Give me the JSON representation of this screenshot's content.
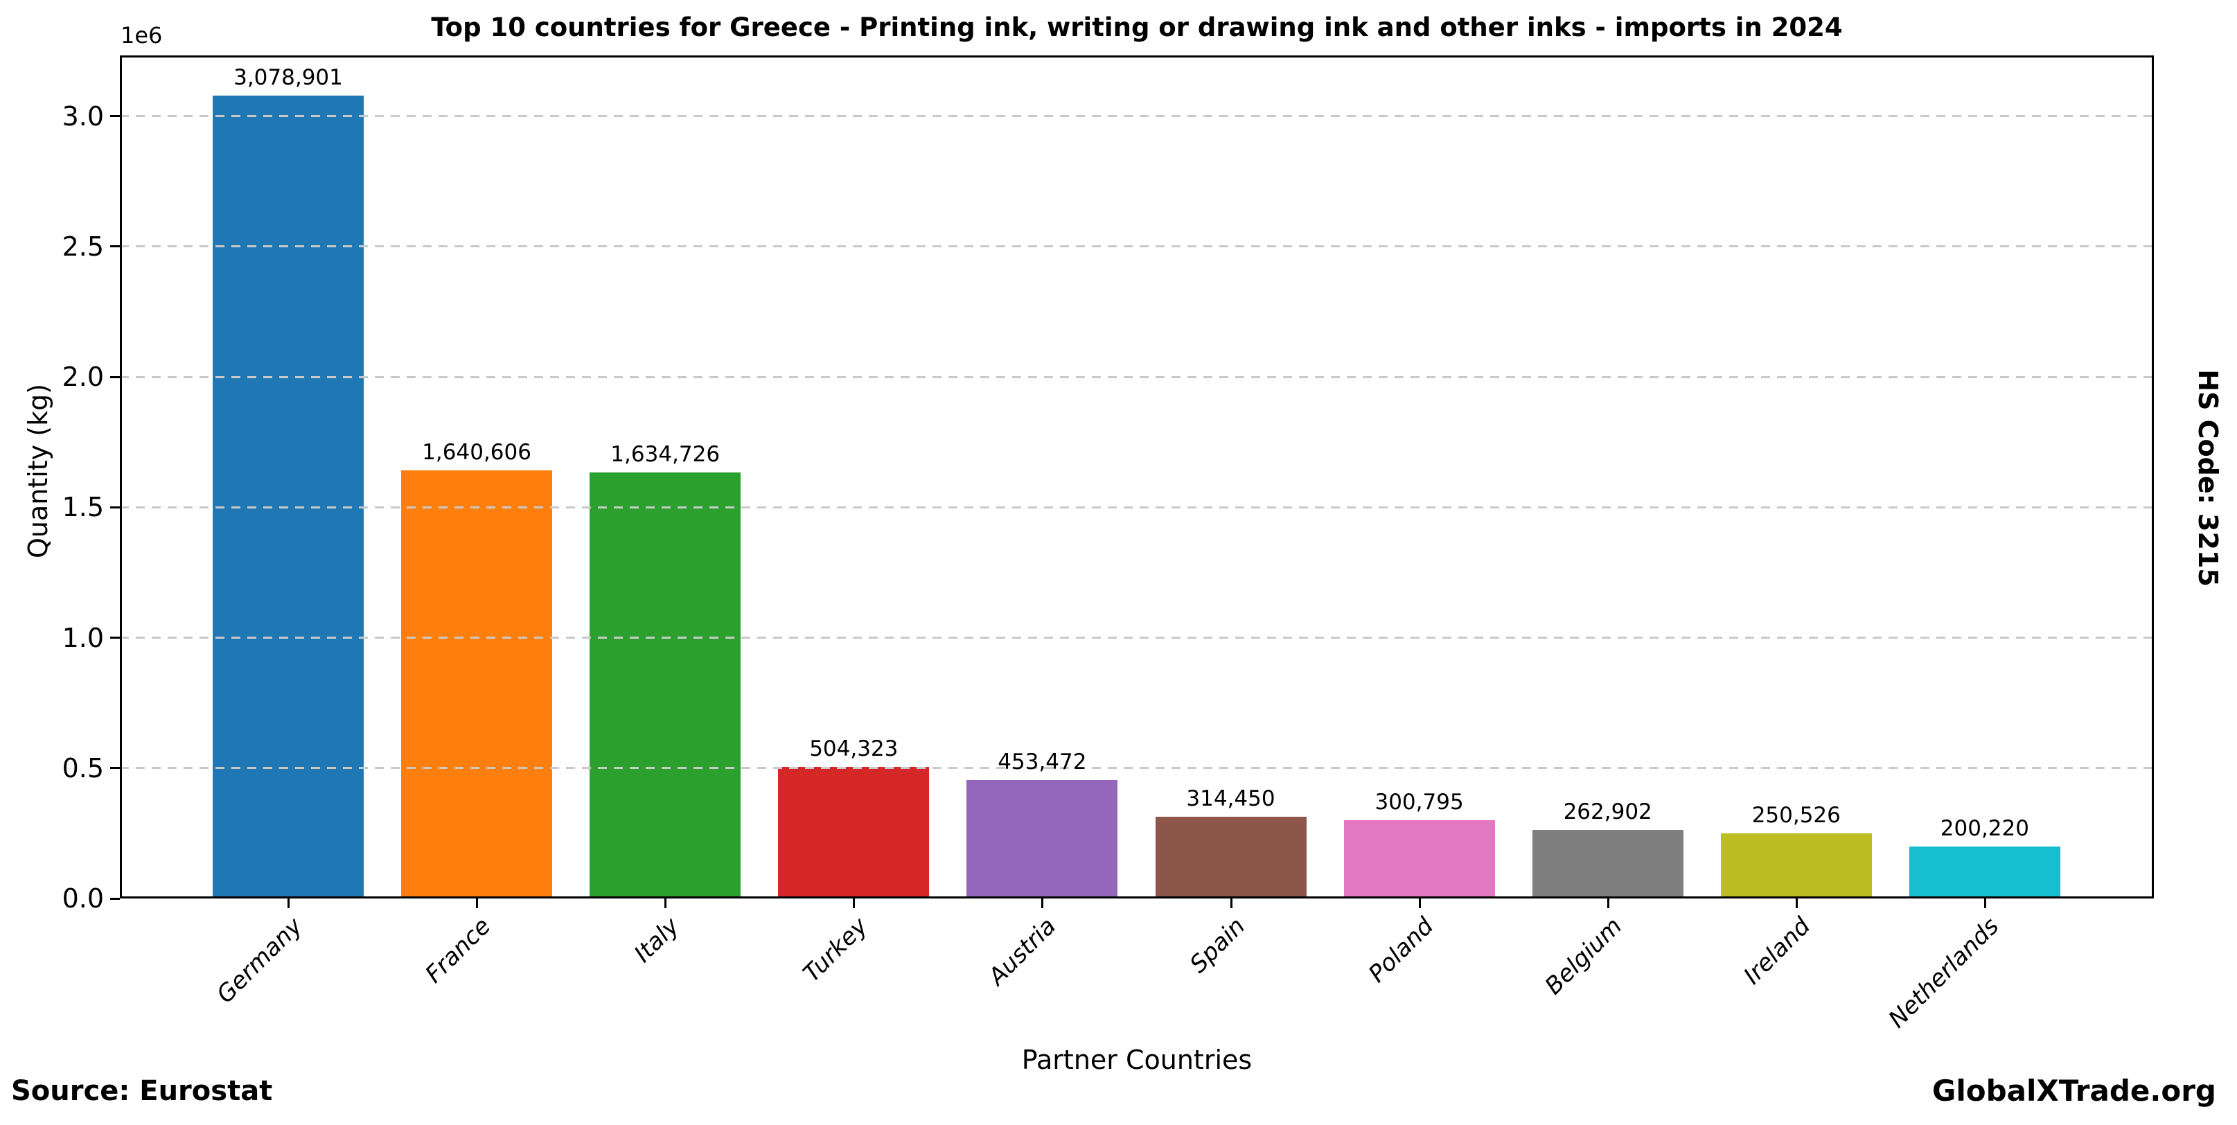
{
  "figure": {
    "source_label": "Source: Eurostat",
    "brand_label": "GlobalXTrade.org",
    "hs_code_label": "HS Code: 3215"
  },
  "chart_data": {
    "type": "bar",
    "title": "Top 10 countries for Greece - Printing ink, writing or drawing ink and other inks - imports in 2024",
    "xlabel": "Partner Countries",
    "ylabel": "Quantity (kg)",
    "y_offset_text": "1e6",
    "categories": [
      "Germany",
      "France",
      "Italy",
      "Turkey",
      "Austria",
      "Spain",
      "Poland",
      "Belgium",
      "Ireland",
      "Netherlands"
    ],
    "values": [
      3078901,
      1640606,
      1634726,
      504323,
      453472,
      314450,
      300795,
      262902,
      250526,
      200220
    ],
    "bar_labels": [
      "3,078,901",
      "1,640,606",
      "1,634,726",
      "504,323",
      "453,472",
      "314,450",
      "300,795",
      "262,902",
      "250,526",
      "200,220"
    ],
    "bar_colors": [
      "#1f77b4",
      "#ff7f0e",
      "#2ca02c",
      "#d62728",
      "#9467bd",
      "#8c564b",
      "#e377c2",
      "#7f7f7f",
      "#bcbd22",
      "#17becf"
    ],
    "ylim": [
      0,
      3233000
    ],
    "yticks": {
      "values": [
        0,
        500000,
        1000000,
        1500000,
        2000000,
        2500000,
        3000000
      ],
      "labels": [
        "0.0",
        "0.5",
        "1.0",
        "1.5",
        "2.0",
        "2.5",
        "3.0"
      ]
    },
    "grid": {
      "axis": "y",
      "style": "dashed",
      "color": "#c9c9c9"
    },
    "legend": null
  }
}
